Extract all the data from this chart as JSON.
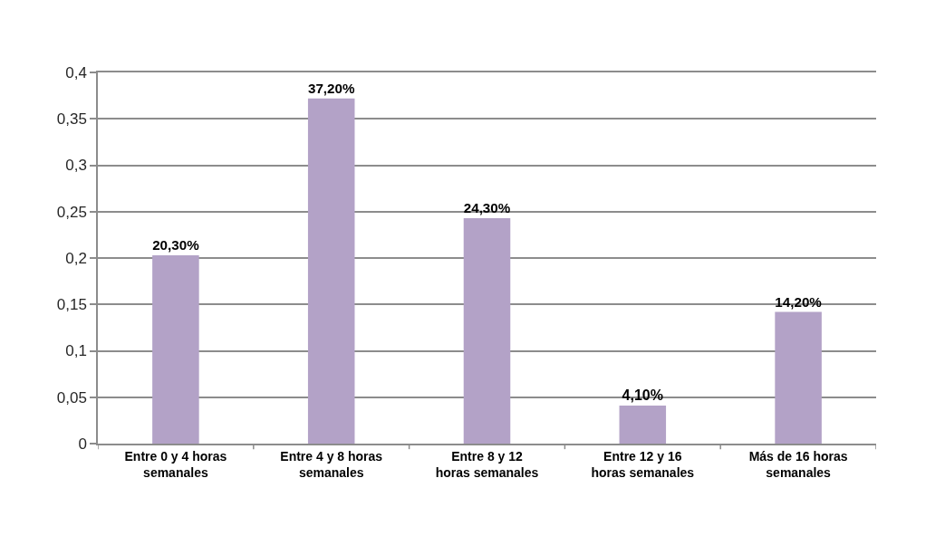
{
  "chart_data": {
    "type": "bar",
    "categories": [
      "Entre 0 y 4 horas semanales",
      "Entre 4 y 8 horas semanales",
      "Entre 8 y 12 horas semanales",
      "Entre 12 y 16 horas semanales",
      "Más de 16 horas semanales"
    ],
    "values": [
      0.203,
      0.372,
      0.243,
      0.041,
      0.142
    ],
    "value_labels": [
      "20,30%",
      "37,20%",
      "24,30%",
      "4,10%",
      "14,20%"
    ],
    "color": "#b3a2c7",
    "ylim": [
      0,
      0.4
    ],
    "yticks": [
      0,
      {
        "value": 0.05,
        "label": "0,05"
      },
      {
        "value": 0.1,
        "label": "0,1"
      },
      {
        "value": 0.15,
        "label": "0,15"
      },
      {
        "value": 0.2,
        "label": "0,2"
      },
      {
        "value": 0.25,
        "label": "0,25"
      },
      {
        "value": 0.3,
        "label": "0,3"
      },
      {
        "value": 0.35,
        "label": "0,35"
      },
      {
        "value": 0.4,
        "label": "0,4"
      }
    ],
    "grid": "y"
  }
}
